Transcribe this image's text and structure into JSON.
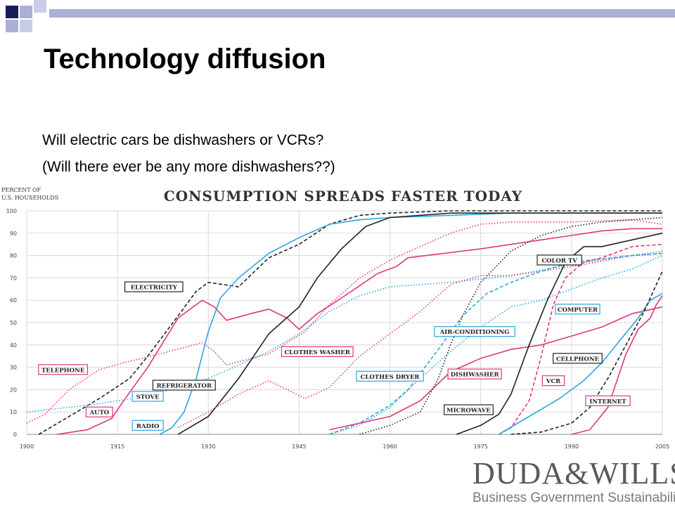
{
  "slide": {
    "title": "Technology diffusion",
    "bullets": [
      "Will electric cars be dishwashers or VCRs?",
      "(Will there ever be any more dishwashers??)"
    ]
  },
  "logo": {
    "name": "DUDA&WILLS",
    "tagline": "Business Government Sustainability"
  },
  "colors": {
    "accent_navy": "#1a1a5e",
    "accent_lavender": "#aab0d8",
    "line_pink": "#e0377a",
    "line_blue": "#2aa6dc",
    "line_black": "#222222"
  },
  "chart_data": {
    "type": "line",
    "title": "CONSUMPTION SPREADS FASTER TODAY",
    "ylabel": "PERCENT OF U.S. HOUSEHOLDS",
    "xlabel": "",
    "xlim": [
      1900,
      2005
    ],
    "ylim": [
      0,
      100
    ],
    "x_ticks": [
      1900,
      1915,
      1930,
      1945,
      1960,
      1975,
      1990,
      2005
    ],
    "y_ticks": [
      0,
      10,
      20,
      30,
      40,
      50,
      60,
      70,
      80,
      90,
      100
    ],
    "grid": true,
    "series": [
      {
        "name": "TELEPHONE",
        "color": "#e0377a",
        "dash": "dotted",
        "label_year": 1906,
        "label_value": 29,
        "points": [
          [
            1900,
            5
          ],
          [
            1903,
            9
          ],
          [
            1907,
            20
          ],
          [
            1912,
            29
          ],
          [
            1916,
            32
          ],
          [
            1922,
            36
          ],
          [
            1929,
            41
          ],
          [
            1931,
            37
          ],
          [
            1933,
            31
          ],
          [
            1940,
            36
          ],
          [
            1946,
            46
          ],
          [
            1950,
            58
          ],
          [
            1955,
            70
          ],
          [
            1960,
            78
          ],
          [
            1965,
            84
          ],
          [
            1970,
            90
          ],
          [
            1975,
            94
          ],
          [
            1980,
            95
          ],
          [
            1990,
            95
          ],
          [
            2000,
            96
          ],
          [
            2005,
            94
          ]
        ]
      },
      {
        "name": "ELECTRICITY",
        "color": "#222222",
        "dash": "dashed",
        "label_year": 1921,
        "label_value": 66,
        "points": [
          [
            1902,
            0
          ],
          [
            1907,
            8
          ],
          [
            1912,
            16
          ],
          [
            1917,
            25
          ],
          [
            1920,
            35
          ],
          [
            1925,
            53
          ],
          [
            1928,
            64
          ],
          [
            1930,
            68
          ],
          [
            1935,
            66
          ],
          [
            1940,
            79
          ],
          [
            1945,
            85
          ],
          [
            1950,
            94
          ],
          [
            1955,
            98
          ],
          [
            1960,
            99
          ],
          [
            1970,
            100
          ],
          [
            2005,
            100
          ]
        ]
      },
      {
        "name": "AUTO",
        "color": "#e0377a",
        "dash": "solid",
        "label_year": 1912,
        "label_value": 10,
        "points": [
          [
            1905,
            0
          ],
          [
            1910,
            2
          ],
          [
            1914,
            7
          ],
          [
            1916,
            15
          ],
          [
            1920,
            30
          ],
          [
            1925,
            52
          ],
          [
            1929,
            60
          ],
          [
            1931,
            57
          ],
          [
            1933,
            51
          ],
          [
            1937,
            54
          ],
          [
            1940,
            56
          ],
          [
            1943,
            52
          ],
          [
            1945,
            47
          ],
          [
            1948,
            54
          ],
          [
            1952,
            61
          ],
          [
            1958,
            72
          ],
          [
            1961,
            75
          ],
          [
            1963,
            79
          ],
          [
            1966,
            80
          ],
          [
            1975,
            83
          ],
          [
            1985,
            87
          ],
          [
            1990,
            89
          ],
          [
            1995,
            91
          ],
          [
            2000,
            92
          ],
          [
            2005,
            92
          ]
        ]
      },
      {
        "name": "STOVE",
        "color": "#2aa6dc",
        "dash": "dotted",
        "label_year": 1920,
        "label_value": 17,
        "points": [
          [
            1900,
            10
          ],
          [
            1910,
            13
          ],
          [
            1920,
            17
          ],
          [
            1930,
            25
          ],
          [
            1940,
            37
          ],
          [
            1945,
            45
          ],
          [
            1950,
            55
          ],
          [
            1955,
            62
          ],
          [
            1960,
            66
          ],
          [
            1970,
            68
          ],
          [
            1980,
            71
          ],
          [
            1990,
            76
          ],
          [
            2005,
            82
          ]
        ]
      },
      {
        "name": "RADIO",
        "color": "#2aa6dc",
        "dash": "solid",
        "label_year": 1920,
        "label_value": 4,
        "points": [
          [
            1922,
            0
          ],
          [
            1924,
            3
          ],
          [
            1926,
            10
          ],
          [
            1928,
            25
          ],
          [
            1930,
            46
          ],
          [
            1932,
            61
          ],
          [
            1935,
            70
          ],
          [
            1940,
            81
          ],
          [
            1945,
            88
          ],
          [
            1950,
            94
          ],
          [
            1955,
            96
          ],
          [
            1960,
            97
          ],
          [
            1970,
            98
          ],
          [
            1980,
            99
          ],
          [
            2005,
            99
          ]
        ]
      },
      {
        "name": "REFRIGERATOR",
        "color": "#222222",
        "dash": "solid",
        "label_year": 1926,
        "label_value": 22,
        "points": [
          [
            1925,
            0
          ],
          [
            1930,
            8
          ],
          [
            1935,
            25
          ],
          [
            1940,
            45
          ],
          [
            1945,
            57
          ],
          [
            1948,
            70
          ],
          [
            1952,
            83
          ],
          [
            1956,
            93
          ],
          [
            1960,
            97
          ],
          [
            1970,
            99
          ],
          [
            2005,
            99
          ]
        ]
      },
      {
        "name": "CLOTHES WASHER",
        "color": "#e0377a",
        "dash": "dotted",
        "label_year": 1948,
        "label_value": 37,
        "points": [
          [
            1925,
            3
          ],
          [
            1930,
            10
          ],
          [
            1935,
            18
          ],
          [
            1940,
            24
          ],
          [
            1943,
            20
          ],
          [
            1946,
            16
          ],
          [
            1950,
            21
          ],
          [
            1955,
            35
          ],
          [
            1960,
            45
          ],
          [
            1965,
            55
          ],
          [
            1970,
            67
          ],
          [
            1975,
            71
          ],
          [
            1980,
            71
          ],
          [
            1990,
            75
          ],
          [
            2000,
            80
          ],
          [
            2005,
            81
          ]
        ]
      },
      {
        "name": "CLOTHES DRYER",
        "color": "#2aa6dc",
        "dash": "dashed",
        "label_year": 1960,
        "label_value": 26,
        "points": [
          [
            1950,
            0
          ],
          [
            1955,
            5
          ],
          [
            1960,
            13
          ],
          [
            1963,
            20
          ],
          [
            1968,
            38
          ],
          [
            1972,
            53
          ],
          [
            1976,
            63
          ],
          [
            1980,
            68
          ],
          [
            1985,
            73
          ],
          [
            1990,
            77
          ],
          [
            2000,
            80
          ],
          [
            2005,
            81
          ]
        ]
      },
      {
        "name": "AIR-CONDITIONING",
        "color": "#2aa6dc",
        "dash": "dotted",
        "label_year": 1974,
        "label_value": 46,
        "points": [
          [
            1950,
            0
          ],
          [
            1955,
            4
          ],
          [
            1960,
            12
          ],
          [
            1965,
            25
          ],
          [
            1970,
            37
          ],
          [
            1975,
            48
          ],
          [
            1980,
            57
          ],
          [
            1985,
            60
          ],
          [
            1990,
            65
          ],
          [
            1995,
            70
          ],
          [
            2000,
            74
          ],
          [
            2005,
            80
          ]
        ]
      },
      {
        "name": "DISHWASHER",
        "color": "#e0377a",
        "dash": "solid",
        "label_year": 1974,
        "label_value": 27,
        "points": [
          [
            1950,
            2
          ],
          [
            1955,
            5
          ],
          [
            1960,
            8
          ],
          [
            1965,
            15
          ],
          [
            1970,
            28
          ],
          [
            1975,
            34
          ],
          [
            1980,
            38
          ],
          [
            1985,
            40
          ],
          [
            1990,
            44
          ],
          [
            1995,
            48
          ],
          [
            2000,
            54
          ],
          [
            2005,
            57
          ]
        ]
      },
      {
        "name": "COLOR TV",
        "color": "#222222",
        "dash": "dotted",
        "label_year": 1988,
        "label_value": 78,
        "points": [
          [
            1955,
            0
          ],
          [
            1960,
            4
          ],
          [
            1965,
            10
          ],
          [
            1968,
            25
          ],
          [
            1970,
            40
          ],
          [
            1972,
            53
          ],
          [
            1975,
            68
          ],
          [
            1980,
            82
          ],
          [
            1985,
            89
          ],
          [
            1990,
            93
          ],
          [
            1995,
            95
          ],
          [
            2005,
            97
          ]
        ]
      },
      {
        "name": "MICROWAVE",
        "color": "#222222",
        "dash": "solid",
        "label_year": 1973,
        "label_value": 11,
        "points": [
          [
            1971,
            0
          ],
          [
            1975,
            4
          ],
          [
            1978,
            9
          ],
          [
            1980,
            18
          ],
          [
            1983,
            40
          ],
          [
            1986,
            60
          ],
          [
            1989,
            77
          ],
          [
            1992,
            84
          ],
          [
            1995,
            84
          ],
          [
            2000,
            87
          ],
          [
            2005,
            90
          ]
        ]
      },
      {
        "name": "VCR",
        "color": "#e0377a",
        "dash": "dashed",
        "label_year": 1987,
        "label_value": 24,
        "points": [
          [
            1978,
            0
          ],
          [
            1980,
            3
          ],
          [
            1983,
            15
          ],
          [
            1985,
            35
          ],
          [
            1987,
            58
          ],
          [
            1989,
            70
          ],
          [
            1992,
            77
          ],
          [
            1995,
            79
          ],
          [
            2000,
            84
          ],
          [
            2005,
            85
          ]
        ]
      },
      {
        "name": "COMPUTER",
        "color": "#2aa6dc",
        "dash": "solid",
        "label_year": 1991,
        "label_value": 56,
        "points": [
          [
            1978,
            0
          ],
          [
            1983,
            8
          ],
          [
            1988,
            16
          ],
          [
            1992,
            24
          ],
          [
            1995,
            32
          ],
          [
            1998,
            42
          ],
          [
            2001,
            52
          ],
          [
            2003,
            60
          ],
          [
            2005,
            63
          ]
        ]
      },
      {
        "name": "CELLPHONE",
        "color": "#222222",
        "dash": "dashed",
        "label_year": 1991,
        "label_value": 34,
        "points": [
          [
            1980,
            0
          ],
          [
            1985,
            1
          ],
          [
            1990,
            5
          ],
          [
            1993,
            12
          ],
          [
            1996,
            25
          ],
          [
            1999,
            40
          ],
          [
            2002,
            55
          ],
          [
            2005,
            73
          ]
        ]
      },
      {
        "name": "INTERNET",
        "color": "#e0377a",
        "dash": "solid",
        "label_year": 1996,
        "label_value": 15,
        "points": [
          [
            1990,
            0
          ],
          [
            1993,
            2
          ],
          [
            1996,
            12
          ],
          [
            1999,
            36
          ],
          [
            2001,
            47
          ],
          [
            2003,
            52
          ],
          [
            2004,
            58
          ],
          [
            2005,
            62
          ]
        ]
      }
    ]
  }
}
